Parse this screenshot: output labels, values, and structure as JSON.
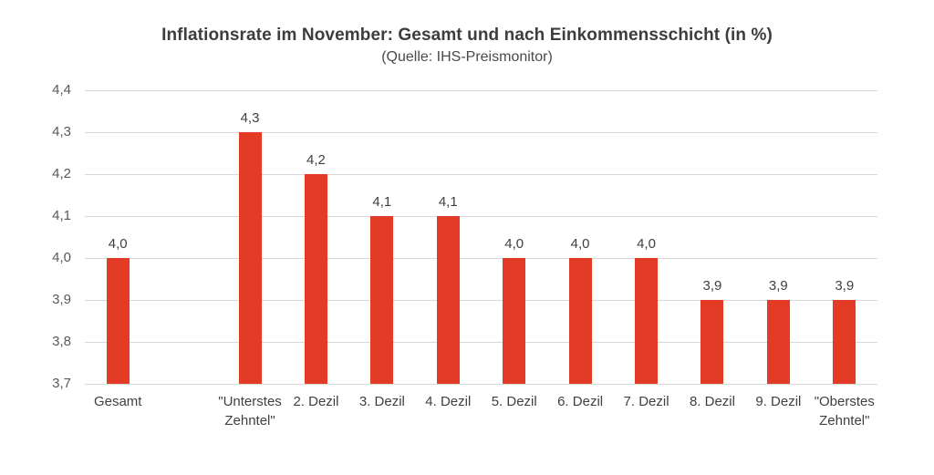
{
  "chart_data": {
    "type": "bar",
    "title": "Inflationsrate im November: Gesamt und nach Einkommensschicht (in %)",
    "subtitle": "(Quelle: IHS-Preismonitor)",
    "categories": [
      "Gesamt",
      "",
      "\"Unterstes Zehntel\"",
      "2. Dezil",
      "3. Dezil",
      "4. Dezil",
      "5. Dezil",
      "6. Dezil",
      "7. Dezil",
      "8. Dezil",
      "9. Dezil",
      "\"Oberstes Zehntel\""
    ],
    "values": [
      4.0,
      null,
      4.3,
      4.2,
      4.1,
      4.1,
      4.0,
      4.0,
      4.0,
      3.9,
      3.9,
      3.9
    ],
    "value_labels": [
      "4,0",
      null,
      "4,3",
      "4,2",
      "4,1",
      "4,1",
      "4,0",
      "4,0",
      "4,0",
      "3,9",
      "3,9",
      "3,9"
    ],
    "y_tick_labels": [
      "4,4",
      "4,3",
      "4,2",
      "4,1",
      "4,0",
      "3,9",
      "3,8",
      "3,7"
    ],
    "y_tick_values": [
      4.4,
      4.3,
      4.2,
      4.1,
      4.0,
      3.9,
      3.8,
      3.7
    ],
    "ylim": [
      3.7,
      4.4
    ],
    "xlabel": "",
    "ylabel": "",
    "grid": true,
    "legend": "none",
    "colors": {
      "bar": "#E23B26",
      "gridline": "#D9D9D9",
      "tick_text": "#595959",
      "label_text": "#404040",
      "title_text": "#3d3d3d",
      "background": "#ffffff"
    }
  }
}
